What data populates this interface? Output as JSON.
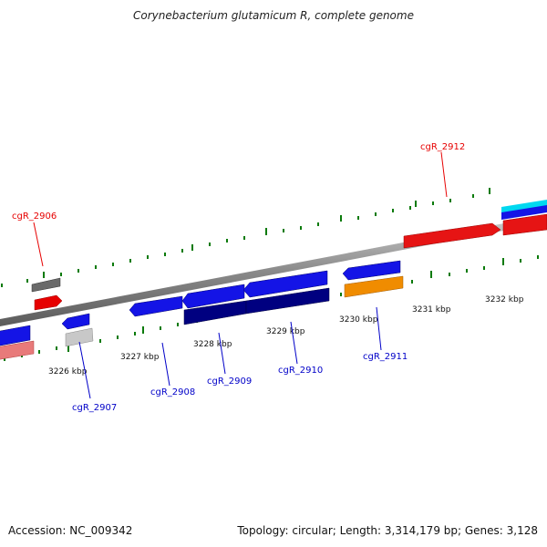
{
  "title": "Corynebacterium glutamicum R, complete genome",
  "footer": {
    "accession": "Accession: NC_009342",
    "summary": "Topology: circular; Length: 3,314,179 bp; Genes: 3,128"
  },
  "ticks": [
    "3226 kbp",
    "3227 kbp",
    "3228 kbp",
    "3229 kbp",
    "3230 kbp",
    "3231 kbp",
    "3232 kbp"
  ],
  "gene_labels": [
    "cgR_2906",
    "cgR_2907",
    "cgR_2908",
    "cgR_2909",
    "cgR_2910",
    "cgR_2911",
    "cgR_2912"
  ],
  "colors": {
    "forward_strand": "#e60000",
    "reverse_strand": "#0000c8",
    "blue": "#1414e6",
    "navy": "#000070",
    "orange": "#f08c00",
    "red": "#e61414",
    "gray": "#606060",
    "light_gray": "#c8c8c8",
    "pink": "#e87a7a",
    "cyan": "#00e0f0",
    "tick_green": "#0a7a0a",
    "backbone": "#909090"
  }
}
